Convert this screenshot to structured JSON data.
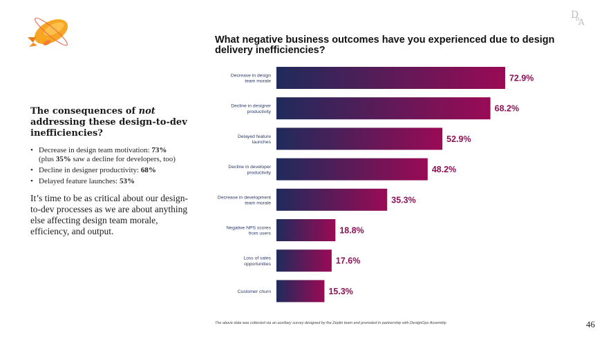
{
  "left_panel": {
    "heading_pre": "The consequences of ",
    "heading_em": "not",
    "heading_post": " addressing these design-to-dev inefficiencies?",
    "bullets": [
      {
        "text": "Decrease in design team motivation: ",
        "value": "73%",
        "note_pre": "(plus ",
        "note_value": "35%",
        "note_post": " saw a decline for developers, too)"
      },
      {
        "text": "Decline in designer productivity: ",
        "value": "68%"
      },
      {
        "text": "Delayed feature launches: ",
        "value": "53%"
      }
    ],
    "paragraph": "It’s time to be as critical about our design-to-dev processes as we are about anything else affecting design team morale, efficiency, and output."
  },
  "footnote": "The above data was collected via an auxiliary survey designed by the Zeplin team and promoted in partnership with DesignOps Assembly.",
  "page_number": "46",
  "colors": {
    "bar_start": "#1f2b5b",
    "bar_end": "#9a0a55",
    "value_label": "#8c1155"
  },
  "chart_data": {
    "type": "bar",
    "orientation": "horizontal",
    "title": "What negative business outcomes have you experienced due to design delivery inefficiencies?",
    "categories": [
      [
        "Decrease in design",
        "team morale"
      ],
      [
        "Decline in designer",
        "productivity"
      ],
      [
        "Delayed feature",
        "launches"
      ],
      [
        "Decline in developer",
        "productivity"
      ],
      [
        "Decrease in development",
        "team morale"
      ],
      [
        "Negative NPS scores",
        "from users"
      ],
      [
        "Loss of sales",
        "opportunities"
      ],
      [
        "Customer churn"
      ]
    ],
    "values": [
      72.9,
      68.2,
      52.9,
      48.2,
      35.3,
      18.8,
      17.6,
      15.3
    ],
    "value_labels": [
      "72.9%",
      "68.2%",
      "52.9%",
      "48.2%",
      "35.3%",
      "18.8%",
      "17.6%",
      "15.3%"
    ],
    "xlim": [
      0,
      100
    ],
    "unit": "%",
    "grid": false,
    "legend": "none"
  }
}
